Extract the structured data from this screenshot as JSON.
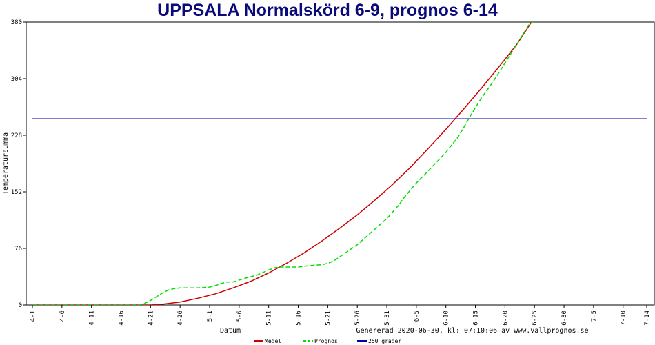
{
  "chart_data": {
    "type": "line",
    "title": "UPPSALA Normalskörd 6-9, prognos 6-14",
    "xlabel": "Datum",
    "ylabel": "Temperatursumma",
    "footer": "Genererad 2020-06-30, kl: 07:10:06 av www.vallprognos.se",
    "ylim": [
      0,
      380
    ],
    "yticks": [
      "0",
      "76",
      "152",
      "228",
      "304",
      "380"
    ],
    "xlim": [
      0,
      104
    ],
    "xticks": [
      {
        "pos": 0,
        "label": "4-1"
      },
      {
        "pos": 5,
        "label": "4-6"
      },
      {
        "pos": 10,
        "label": "4-11"
      },
      {
        "pos": 15,
        "label": "4-16"
      },
      {
        "pos": 20,
        "label": "4-21"
      },
      {
        "pos": 25,
        "label": "4-26"
      },
      {
        "pos": 30,
        "label": "5-1"
      },
      {
        "pos": 35,
        "label": "5-6"
      },
      {
        "pos": 40,
        "label": "5-11"
      },
      {
        "pos": 45,
        "label": "5-16"
      },
      {
        "pos": 50,
        "label": "5-21"
      },
      {
        "pos": 55,
        "label": "5-26"
      },
      {
        "pos": 60,
        "label": "5-31"
      },
      {
        "pos": 65,
        "label": "6-5"
      },
      {
        "pos": 70,
        "label": "6-10"
      },
      {
        "pos": 75,
        "label": "6-15"
      },
      {
        "pos": 80,
        "label": "6-20"
      },
      {
        "pos": 85,
        "label": "6-25"
      },
      {
        "pos": 90,
        "label": "6-30"
      },
      {
        "pos": 95,
        "label": "7-5"
      },
      {
        "pos": 100,
        "label": "7-10"
      },
      {
        "pos": 104,
        "label": "7-14"
      }
    ],
    "grid": false,
    "legend_position": "bottom",
    "series": [
      {
        "name": "Medel",
        "color": "#cc0000",
        "dash": false,
        "points": [
          [
            0,
            0
          ],
          [
            20,
            0
          ],
          [
            22,
            1
          ],
          [
            25,
            4
          ],
          [
            28,
            9
          ],
          [
            31,
            15
          ],
          [
            34,
            23
          ],
          [
            37,
            32
          ],
          [
            40,
            43
          ],
          [
            43,
            56
          ],
          [
            46,
            70
          ],
          [
            49,
            86
          ],
          [
            52,
            103
          ],
          [
            55,
            121
          ],
          [
            58,
            141
          ],
          [
            61,
            162
          ],
          [
            64,
            185
          ],
          [
            67,
            210
          ],
          [
            70,
            236
          ],
          [
            73,
            263
          ],
          [
            76,
            291
          ],
          [
            79,
            320
          ],
          [
            82,
            350
          ],
          [
            84.5,
            380
          ]
        ]
      },
      {
        "name": "Prognos",
        "color": "#00dd00",
        "dash": true,
        "points": [
          [
            0,
            0
          ],
          [
            18,
            0
          ],
          [
            19,
            2
          ],
          [
            20,
            6
          ],
          [
            21,
            11
          ],
          [
            22,
            16
          ],
          [
            23,
            20
          ],
          [
            24,
            22
          ],
          [
            25,
            23
          ],
          [
            28,
            23
          ],
          [
            30,
            24
          ],
          [
            31,
            26
          ],
          [
            32,
            29
          ],
          [
            33,
            31
          ],
          [
            34,
            31
          ],
          [
            36,
            36
          ],
          [
            38,
            40
          ],
          [
            40,
            47
          ],
          [
            41,
            50
          ],
          [
            42,
            51
          ],
          [
            45,
            51
          ],
          [
            46,
            52
          ],
          [
            47,
            53
          ],
          [
            49,
            54
          ],
          [
            50,
            56
          ],
          [
            51,
            59
          ],
          [
            53,
            70
          ],
          [
            55,
            81
          ],
          [
            57,
            95
          ],
          [
            60,
            116
          ],
          [
            62,
            134
          ],
          [
            63,
            145
          ],
          [
            65,
            164
          ],
          [
            67,
            180
          ],
          [
            70,
            205
          ],
          [
            72,
            225
          ],
          [
            73,
            238
          ],
          [
            74,
            252
          ],
          [
            75,
            265
          ],
          [
            76,
            278
          ],
          [
            78,
            300
          ],
          [
            80,
            325
          ],
          [
            82,
            350
          ],
          [
            84,
            376
          ],
          [
            85,
            382
          ]
        ]
      },
      {
        "name": "250 grader",
        "color": "#0000aa",
        "dash": false,
        "points": [
          [
            0,
            250
          ],
          [
            104,
            250
          ]
        ]
      }
    ]
  }
}
